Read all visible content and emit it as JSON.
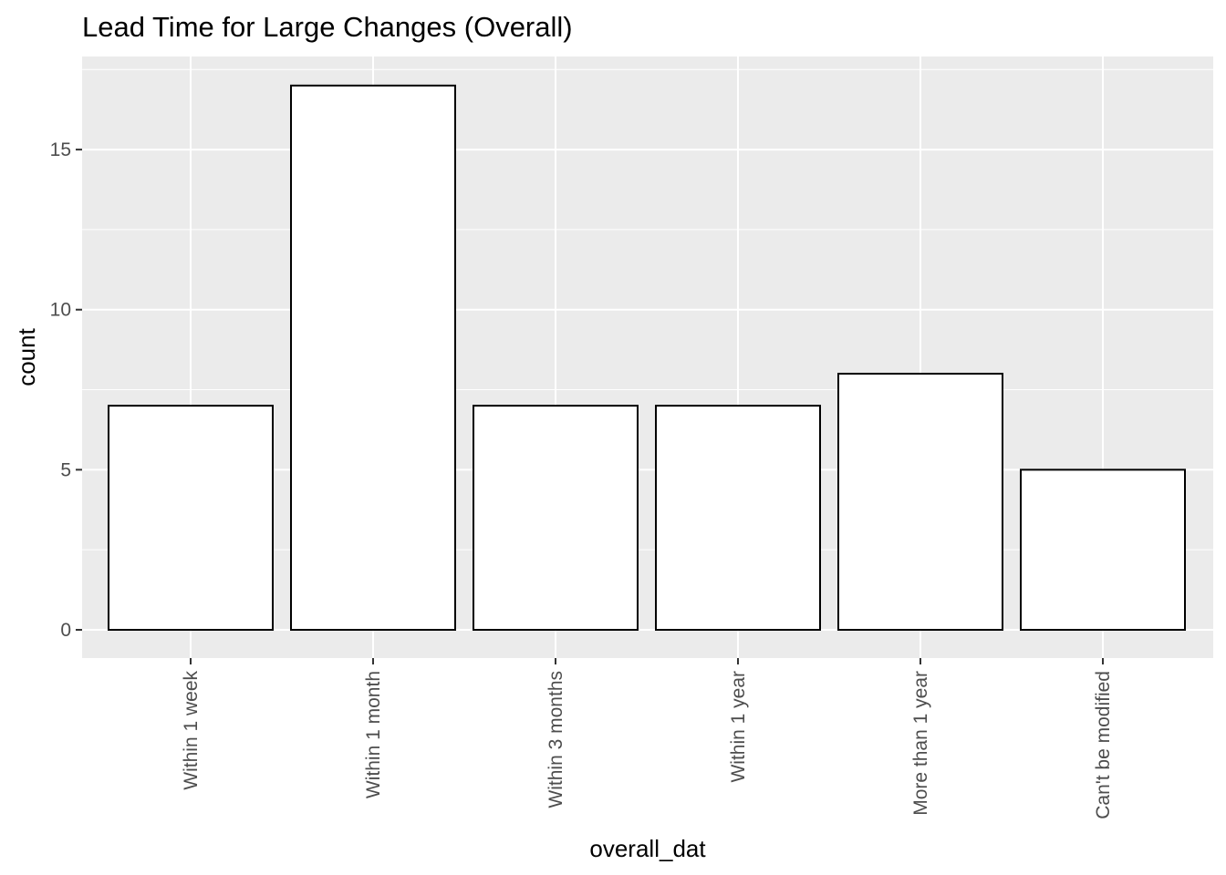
{
  "chart_data": {
    "type": "bar",
    "title": "Lead Time for Large Changes (Overall)",
    "xlabel": "overall_dat",
    "ylabel": "count",
    "categories": [
      "Within 1 week",
      "Within 1 month",
      "Within 3 months",
      "Within 1 year",
      "More than 1 year",
      "Can't be modified"
    ],
    "values": [
      7,
      17,
      7,
      7,
      8,
      5
    ],
    "ylim": [
      0,
      17.85
    ],
    "yticks": [
      0,
      5,
      10,
      15
    ],
    "ytick_labels": [
      "0",
      "5",
      "10",
      "15"
    ],
    "grid": true,
    "legend": "none",
    "colors": {
      "panel_background": "#EBEBEB",
      "grid_major": "#FFFFFF",
      "bar_fill": "#FFFFFF",
      "bar_outline": "#000000",
      "tick_label": "#4D4D4D",
      "tick_mark": "#333333"
    }
  }
}
